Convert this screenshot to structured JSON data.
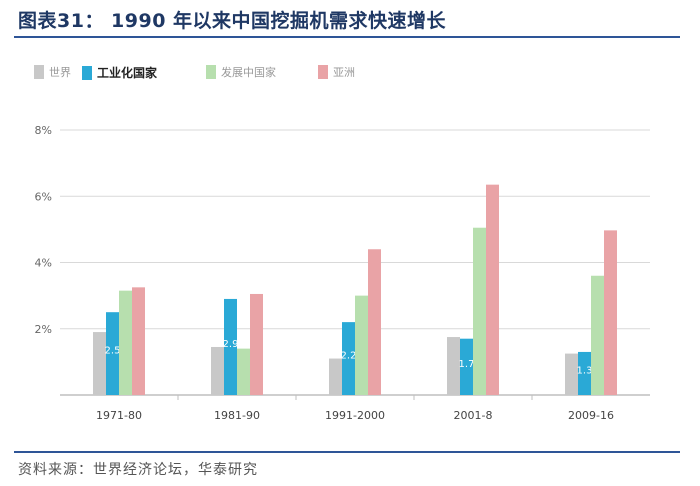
{
  "title": "图表31：  1990 年以来中国挖掘机需求快速增长",
  "source": "资料来源：世界经济论坛，华泰研究",
  "colors": {
    "world": "#c8c8c8",
    "industrialized": "#2aa9d6",
    "developing_china": "#b7dfae",
    "asia": "#e9a3a6",
    "grid": "#d9d9d9",
    "axis": "#bfbfbf",
    "tick_text": "#666666",
    "rule": "#2e5597"
  },
  "chart_data": {
    "type": "bar",
    "categories": [
      "1971-80",
      "1981-90",
      "1991-2000",
      "2001-8",
      "2009-16"
    ],
    "series": [
      {
        "name": "世界",
        "values": [
          1.9,
          1.45,
          1.1,
          1.75,
          1.25
        ]
      },
      {
        "name": "工业化国家",
        "values": [
          2.5,
          2.9,
          2.2,
          1.7,
          1.3
        ]
      },
      {
        "name": "发展中国家",
        "values": [
          3.15,
          1.4,
          3.0,
          5.05,
          3.6
        ]
      },
      {
        "name": "亚洲",
        "values": [
          3.25,
          3.05,
          4.4,
          6.35,
          4.97
        ]
      }
    ],
    "data_labels": [
      "2.5",
      "2.9",
      "2.2",
      "1.7",
      "1.3"
    ],
    "y_ticks": [
      "2%",
      "4%",
      "6%",
      "8%"
    ],
    "y_tick_values": [
      2,
      4,
      6,
      8
    ],
    "ylim": [
      0,
      8
    ],
    "grid": true,
    "legend_position": "top-left"
  }
}
